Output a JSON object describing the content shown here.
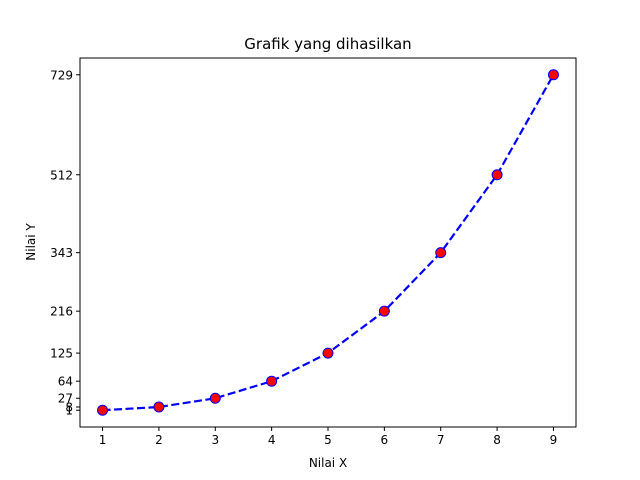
{
  "chart_data": {
    "type": "line",
    "title": "Grafik yang dihasilkan",
    "xlabel": "Nilai X",
    "ylabel": "Nilai Y",
    "x": [
      1,
      2,
      3,
      4,
      5,
      6,
      7,
      8,
      9
    ],
    "xticks": [
      1,
      2,
      3,
      4,
      5,
      6,
      7,
      8,
      9
    ],
    "yticks": [
      1,
      8,
      27,
      64,
      125,
      216,
      343,
      512,
      729
    ],
    "xlim": [
      0.6,
      9.4
    ],
    "ylim": [
      -35.4,
      765.4
    ],
    "series": [
      {
        "values": [
          1,
          8,
          27,
          64,
          125,
          216,
          343,
          512,
          729
        ],
        "line_color": "#0000ff",
        "line_style": "dashed",
        "marker": "circle",
        "marker_face": "#ff0000",
        "marker_edge": "#0000ff"
      }
    ],
    "grid": false,
    "legend": "none"
  }
}
